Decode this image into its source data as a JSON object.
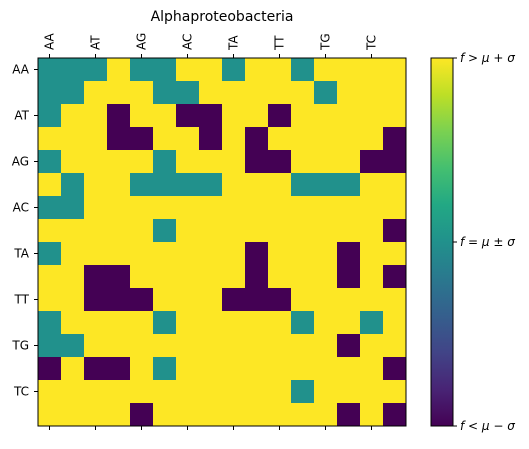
{
  "chart_data": {
    "type": "heatmap",
    "title": "Alphaproteobacteria",
    "row_labels": [
      "AA",
      "",
      "AT",
      "",
      "AG",
      "",
      "AC",
      "",
      "TA",
      "",
      "TT",
      "",
      "TG",
      "",
      "TC",
      ""
    ],
    "col_labels": [
      "AA",
      "",
      "AT",
      "",
      "AG",
      "",
      "AC",
      "",
      "TA",
      "",
      "TT",
      "",
      "TG",
      "",
      "TC",
      ""
    ],
    "levels": [
      "f < μ − σ",
      "f = μ ± σ",
      "f > μ + σ"
    ],
    "matrix": [
      [
        1,
        1,
        1,
        2,
        1,
        1,
        2,
        2,
        1,
        2,
        2,
        1,
        2,
        2,
        2,
        2
      ],
      [
        1,
        1,
        2,
        2,
        2,
        1,
        1,
        2,
        2,
        2,
        2,
        2,
        1,
        2,
        2,
        2
      ],
      [
        1,
        2,
        2,
        0,
        2,
        2,
        0,
        0,
        2,
        2,
        0,
        2,
        2,
        2,
        2,
        2
      ],
      [
        2,
        2,
        2,
        0,
        0,
        2,
        2,
        0,
        2,
        0,
        2,
        2,
        2,
        2,
        2,
        0
      ],
      [
        1,
        2,
        2,
        2,
        2,
        1,
        2,
        2,
        2,
        0,
        0,
        2,
        2,
        2,
        0,
        0
      ],
      [
        2,
        1,
        2,
        2,
        1,
        1,
        1,
        1,
        2,
        2,
        2,
        1,
        1,
        1,
        2,
        2
      ],
      [
        1,
        1,
        2,
        2,
        2,
        2,
        2,
        2,
        2,
        2,
        2,
        2,
        2,
        2,
        2,
        2
      ],
      [
        2,
        2,
        2,
        2,
        2,
        1,
        2,
        2,
        2,
        2,
        2,
        2,
        2,
        2,
        2,
        0
      ],
      [
        1,
        2,
        2,
        2,
        2,
        2,
        2,
        2,
        2,
        0,
        2,
        2,
        2,
        0,
        2,
        2
      ],
      [
        2,
        2,
        0,
        0,
        2,
        2,
        2,
        2,
        2,
        0,
        2,
        2,
        2,
        0,
        2,
        0
      ],
      [
        2,
        2,
        0,
        0,
        0,
        2,
        2,
        2,
        0,
        0,
        0,
        2,
        2,
        2,
        2,
        2
      ],
      [
        1,
        2,
        2,
        2,
        2,
        1,
        2,
        2,
        2,
        2,
        2,
        1,
        2,
        2,
        1,
        2
      ],
      [
        1,
        1,
        2,
        2,
        2,
        2,
        2,
        2,
        2,
        2,
        2,
        2,
        2,
        0,
        2,
        2
      ],
      [
        0,
        2,
        0,
        0,
        2,
        1,
        2,
        2,
        2,
        2,
        2,
        2,
        2,
        2,
        2,
        0
      ],
      [
        2,
        2,
        2,
        2,
        2,
        2,
        2,
        2,
        2,
        2,
        2,
        1,
        2,
        2,
        2,
        2
      ],
      [
        2,
        2,
        2,
        2,
        0,
        2,
        2,
        2,
        2,
        2,
        2,
        2,
        2,
        0,
        2,
        0
      ]
    ],
    "colors": {
      "low": "#440154",
      "mid": "#21918c",
      "high": "#fde725"
    },
    "colorbar": {
      "position": "right",
      "tick_labels": [
        "f < μ − σ",
        "f = μ ± σ",
        "f > μ + σ"
      ],
      "tick_values": [
        0,
        1,
        2
      ],
      "range": [
        0,
        2
      ]
    },
    "grid": false
  }
}
